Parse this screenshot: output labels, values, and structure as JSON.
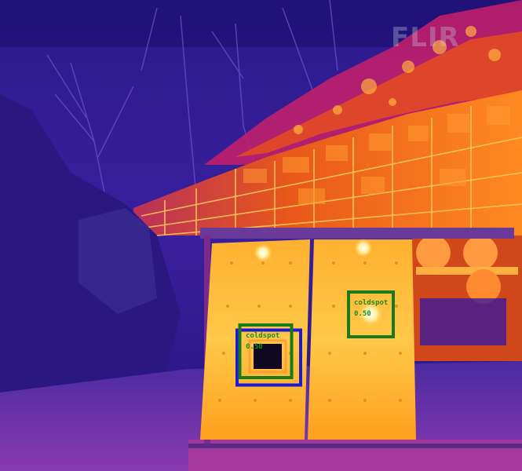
{
  "image": {
    "watermark": "FLIR",
    "palette": {
      "cold": "#0a0640",
      "cool": "#3a1a9a",
      "mid": "#c8208a",
      "warm": "#ff6a10",
      "hot": "#ffd060",
      "hottest": "#ffffff"
    }
  },
  "detections": [
    {
      "label": "coldspot",
      "score": "0.50",
      "color": "#1a8f1a"
    },
    {
      "label": "coldspot",
      "score": "0.50",
      "color": "#1a8f1a"
    }
  ],
  "ground_truth": {
    "color": "#1a1ad8"
  }
}
